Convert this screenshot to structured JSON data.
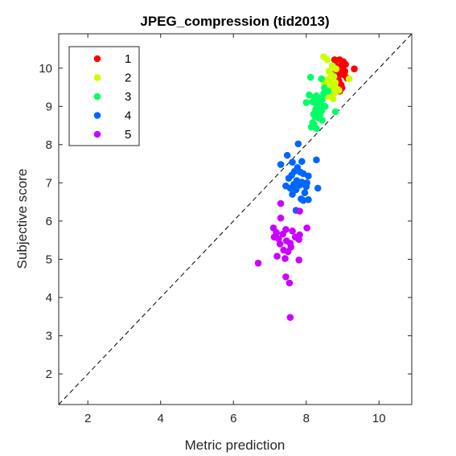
{
  "chart_data": {
    "type": "scatter",
    "title": "JPEG_compression (tid2013)",
    "xlabel": "Metric prediction",
    "ylabel": "Subjective score",
    "xlim": [
      1.2,
      10.9
    ],
    "ylim": [
      1.2,
      10.9
    ],
    "xticks": [
      2,
      4,
      6,
      8,
      10
    ],
    "yticks": [
      2,
      3,
      4,
      5,
      6,
      7,
      8,
      9,
      10
    ],
    "grid": false,
    "legend_position": "top-left",
    "reference_line": {
      "style": "dashed",
      "description": "identity y = x"
    },
    "series": [
      {
        "name": "1",
        "color": "#ff0000",
        "points": [
          [
            8.78,
            10.22
          ],
          [
            8.92,
            10.22
          ],
          [
            9.02,
            10.17
          ],
          [
            8.8,
            10.08
          ],
          [
            8.92,
            10.04
          ],
          [
            9.32,
            9.98
          ],
          [
            9.0,
            9.96
          ],
          [
            9.06,
            9.92
          ],
          [
            8.82,
            9.92
          ],
          [
            8.95,
            9.86
          ],
          [
            9.05,
            9.82
          ],
          [
            8.88,
            9.78
          ],
          [
            9.12,
            9.74
          ],
          [
            8.9,
            9.66
          ],
          [
            8.96,
            9.56
          ],
          [
            8.98,
            9.48
          ],
          [
            8.84,
            9.45
          ],
          [
            8.92,
            9.4
          ],
          [
            9.0,
            9.9
          ],
          [
            9.08,
            10.1
          ]
        ]
      },
      {
        "name": "2",
        "color": "#ccff00",
        "points": [
          [
            8.48,
            10.3
          ],
          [
            8.58,
            10.22
          ],
          [
            8.72,
            10.06
          ],
          [
            8.82,
            9.98
          ],
          [
            8.62,
            9.92
          ],
          [
            8.68,
            9.84
          ],
          [
            8.76,
            9.78
          ],
          [
            8.58,
            9.7
          ],
          [
            8.66,
            9.64
          ],
          [
            8.8,
            9.62
          ],
          [
            8.5,
            9.58
          ],
          [
            8.7,
            9.52
          ],
          [
            8.84,
            9.46
          ],
          [
            8.56,
            9.4
          ],
          [
            8.78,
            9.36
          ],
          [
            9.18,
            9.72
          ],
          [
            8.9,
            9.42
          ],
          [
            8.64,
            9.3
          ],
          [
            8.6,
            9.26
          ],
          [
            8.74,
            9.2
          ]
        ]
      },
      {
        "name": "3",
        "color": "#00ff66",
        "points": [
          [
            8.12,
            9.76
          ],
          [
            8.42,
            9.72
          ],
          [
            8.5,
            9.48
          ],
          [
            8.6,
            9.4
          ],
          [
            8.48,
            9.34
          ],
          [
            8.28,
            9.28
          ],
          [
            8.22,
            9.24
          ],
          [
            8.36,
            9.22
          ],
          [
            8.44,
            9.18
          ],
          [
            8.3,
            9.16
          ],
          [
            8.18,
            9.12
          ],
          [
            8.26,
            9.08
          ],
          [
            8.4,
            9.06
          ],
          [
            8.0,
            9.1
          ],
          [
            8.52,
            9.0
          ],
          [
            8.32,
            8.98
          ],
          [
            8.26,
            8.92
          ],
          [
            8.42,
            8.88
          ],
          [
            8.3,
            8.86
          ],
          [
            8.2,
            8.8
          ],
          [
            8.38,
            8.78
          ],
          [
            8.24,
            8.74
          ],
          [
            8.34,
            8.7
          ],
          [
            8.8,
            8.86
          ],
          [
            8.44,
            8.64
          ],
          [
            8.18,
            8.58
          ],
          [
            8.22,
            8.52
          ],
          [
            8.14,
            8.46
          ],
          [
            8.28,
            8.42
          ],
          [
            8.08,
            9.3
          ]
        ]
      },
      {
        "name": "4",
        "color": "#0066ff",
        "points": [
          [
            7.78,
            8.02
          ],
          [
            7.48,
            7.72
          ],
          [
            7.88,
            7.56
          ],
          [
            7.62,
            7.54
          ],
          [
            8.28,
            7.6
          ],
          [
            7.3,
            7.48
          ],
          [
            7.76,
            7.4
          ],
          [
            7.68,
            7.3
          ],
          [
            7.84,
            7.28
          ],
          [
            7.92,
            7.24
          ],
          [
            7.6,
            7.2
          ],
          [
            8.06,
            7.18
          ],
          [
            7.52,
            7.12
          ],
          [
            7.74,
            7.06
          ],
          [
            7.88,
            7.02
          ],
          [
            8.02,
            7.0
          ],
          [
            7.66,
            6.96
          ],
          [
            7.82,
            6.94
          ],
          [
            7.44,
            6.92
          ],
          [
            7.56,
            6.86
          ],
          [
            8.32,
            6.86
          ],
          [
            7.72,
            6.82
          ],
          [
            7.96,
            6.74
          ],
          [
            7.62,
            6.7
          ],
          [
            7.86,
            6.58
          ],
          [
            8.06,
            6.56
          ],
          [
            7.92,
            6.54
          ],
          [
            7.72,
            6.28
          ],
          [
            8.0,
            6.9
          ]
        ]
      },
      {
        "name": "5",
        "color": "#cc00ff",
        "points": [
          [
            7.3,
            6.46
          ],
          [
            7.82,
            6.26
          ],
          [
            7.3,
            6.08
          ],
          [
            8.02,
            5.82
          ],
          [
            7.1,
            5.82
          ],
          [
            7.44,
            5.78
          ],
          [
            7.62,
            5.74
          ],
          [
            7.18,
            5.7
          ],
          [
            7.36,
            5.66
          ],
          [
            7.82,
            5.64
          ],
          [
            7.12,
            5.58
          ],
          [
            7.7,
            5.58
          ],
          [
            7.24,
            5.54
          ],
          [
            7.8,
            5.52
          ],
          [
            7.46,
            5.48
          ],
          [
            7.56,
            5.42
          ],
          [
            7.28,
            5.4
          ],
          [
            7.58,
            5.32
          ],
          [
            7.38,
            5.24
          ],
          [
            7.5,
            5.2
          ],
          [
            7.2,
            5.08
          ],
          [
            7.42,
            5.02
          ],
          [
            7.8,
            4.98
          ],
          [
            6.68,
            4.9
          ],
          [
            7.44,
            4.54
          ],
          [
            7.54,
            4.38
          ],
          [
            7.56,
            3.48
          ]
        ]
      }
    ]
  }
}
